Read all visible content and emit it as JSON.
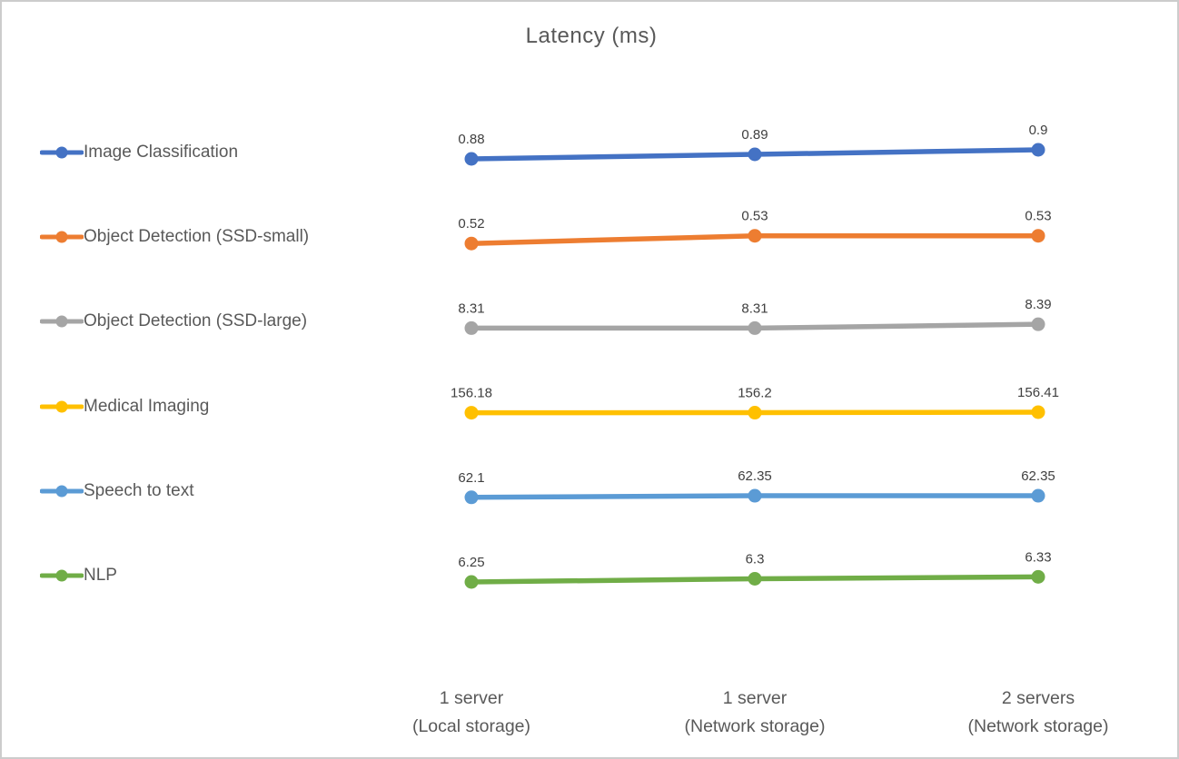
{
  "title": "Latency (ms)",
  "colors": {
    "title_text": "#595959",
    "axis_text": "#595959",
    "legend_text": "#595959",
    "data_label_text": "#404040",
    "border": "#cccccc",
    "background": "#ffffff"
  },
  "chart_data": {
    "type": "line",
    "title": "Latency (ms)",
    "categories": [
      "1 server\n(Local storage)",
      "1 server\n(Network storage)",
      "2 servers\n(Network storage)"
    ],
    "category_lines": [
      [
        "1 server",
        "(Local storage)"
      ],
      [
        "1 server",
        "(Network storage)"
      ],
      [
        "2 servers",
        "(Network storage)"
      ]
    ],
    "series": [
      {
        "name": "Image Classification",
        "color": "#4472C4",
        "values": [
          0.88,
          0.89,
          0.9
        ],
        "labels": [
          "0.88",
          "0.89",
          "0.9"
        ]
      },
      {
        "name": "Object Detection (SSD-small)",
        "color": "#ED7D31",
        "values": [
          0.52,
          0.53,
          0.53
        ],
        "labels": [
          "0.52",
          "0.53",
          "0.53"
        ]
      },
      {
        "name": "Object Detection (SSD-large)",
        "color": "#A5A5A5",
        "values": [
          8.31,
          8.31,
          8.39
        ],
        "labels": [
          "8.31",
          "8.31",
          "8.39"
        ]
      },
      {
        "name": "Medical Imaging",
        "color": "#FFC000",
        "values": [
          156.18,
          156.2,
          156.41
        ],
        "labels": [
          "156.18",
          "156.2",
          "156.41"
        ]
      },
      {
        "name": "Speech to text",
        "color": "#5B9BD5",
        "values": [
          62.1,
          62.35,
          62.35
        ],
        "labels": [
          "62.1",
          "62.35",
          "62.35"
        ]
      },
      {
        "name": "NLP",
        "color": "#70AD47",
        "values": [
          6.25,
          6.3,
          6.33
        ],
        "labels": [
          "6.25",
          "6.3",
          "6.33"
        ]
      }
    ],
    "legend_position": "left",
    "data_labels": "above points",
    "grid": false,
    "axes_hidden": true
  }
}
